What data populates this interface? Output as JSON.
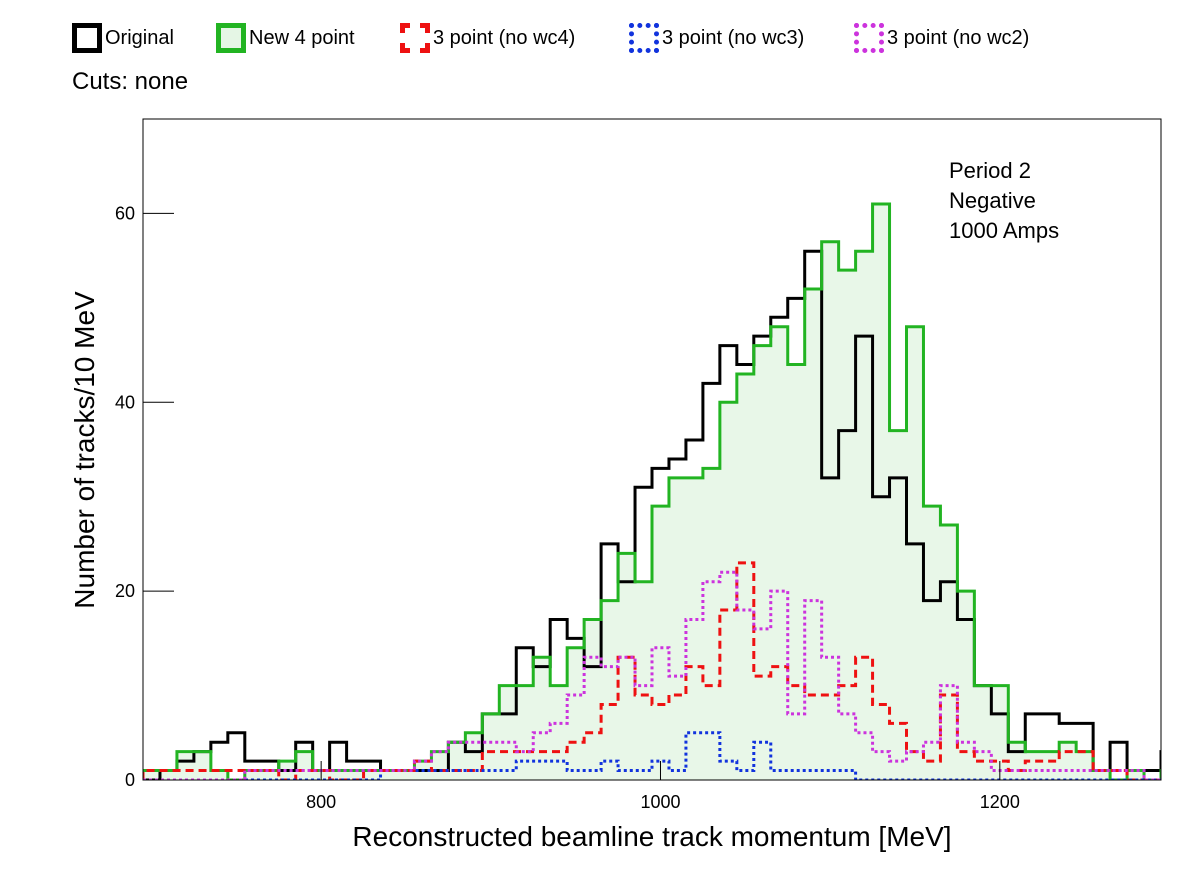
{
  "cuts_label": "Cuts: none",
  "annotations": [
    "Period 2",
    "Negative",
    "1000 Amps"
  ],
  "chart_data": {
    "type": "step-histogram",
    "title": "",
    "xlabel": "Reconstructed beamline track momentum [MeV]",
    "ylabel": "Number of tracks/10 MeV",
    "xlim": [
      695,
      1295
    ],
    "ylim": [
      0,
      70
    ],
    "xticks": [
      800,
      1000,
      1200
    ],
    "yticks": [
      0,
      20,
      40,
      60
    ],
    "legend_position": "top",
    "bin_width": 10,
    "x_start": 695,
    "series": [
      {
        "name": "Original",
        "color": "#000000",
        "fill": "none",
        "dash": "",
        "legend_fill": "none",
        "width": 3,
        "values": [
          0,
          1,
          2,
          3,
          4,
          5,
          2,
          2,
          1,
          4,
          1,
          4,
          2,
          2,
          1,
          1,
          1,
          1,
          4,
          3,
          7,
          7,
          14,
          12,
          17,
          15,
          12,
          25,
          21,
          31,
          33,
          34,
          36,
          42,
          46,
          44,
          47,
          49,
          51,
          56,
          32,
          37,
          47,
          30,
          32,
          25,
          19,
          21,
          17,
          10,
          7,
          3,
          7,
          7,
          6,
          6,
          1,
          4,
          1,
          1,
          3,
          2,
          1,
          1
        ]
      },
      {
        "name": "New 4 point",
        "color": "#22b422",
        "fill": "#22b422",
        "dash": "",
        "legend_fill": "#e5f6e5",
        "width": 3,
        "values": [
          1,
          1,
          3,
          3,
          1,
          0,
          1,
          1,
          2,
          3,
          1,
          1,
          1,
          1,
          1,
          1,
          2,
          3,
          4,
          5,
          7,
          10,
          10,
          13,
          10,
          14,
          17,
          19,
          24,
          21,
          29,
          32,
          32,
          33,
          40,
          43,
          46,
          48,
          44,
          52,
          57,
          54,
          56,
          61,
          37,
          48,
          29,
          27,
          20,
          10,
          10,
          4,
          3,
          3,
          4,
          3,
          1,
          0,
          1,
          0,
          1,
          1,
          0,
          0
        ]
      },
      {
        "name": "3 point (no wc4)",
        "color": "#ee1111",
        "fill": "none",
        "dash": "8,5",
        "legend_fill": "none",
        "width": 3,
        "values": [
          1,
          1,
          1,
          1,
          1,
          1,
          1,
          1,
          0,
          1,
          1,
          0,
          0,
          1,
          1,
          1,
          2,
          1,
          1,
          1,
          3,
          3,
          3,
          3,
          3,
          4,
          5,
          8,
          13,
          9,
          8,
          9,
          12,
          10,
          18,
          23,
          11,
          12,
          10,
          9,
          9,
          10,
          13,
          8,
          6,
          3,
          2,
          9,
          3,
          2,
          2,
          1,
          2,
          2,
          3,
          3,
          1,
          1,
          0,
          0,
          0,
          0,
          0,
          1
        ]
      },
      {
        "name": "3 point (no wc3)",
        "color": "#1133dd",
        "fill": "none",
        "dash": "3,3",
        "legend_fill": "none",
        "width": 3,
        "values": [
          0,
          0,
          0,
          0,
          0,
          0,
          0,
          0,
          0,
          0,
          0,
          0,
          0,
          0,
          1,
          1,
          1,
          1,
          1,
          1,
          1,
          1,
          2,
          2,
          2,
          1,
          1,
          2,
          1,
          1,
          2,
          1,
          5,
          5,
          2,
          1,
          4,
          1,
          1,
          1,
          1,
          1,
          0,
          0,
          0,
          0,
          0,
          0,
          0,
          0,
          0,
          0,
          0,
          0,
          0,
          0,
          0,
          0,
          0,
          0,
          0,
          0,
          0,
          0
        ]
      },
      {
        "name": "3 point (no wc2)",
        "color": "#cc33dd",
        "fill": "none",
        "dash": "3,3",
        "legend_fill": "none",
        "width": 3,
        "values": [
          0,
          0,
          0,
          0,
          0,
          0,
          1,
          1,
          1,
          1,
          1,
          1,
          1,
          1,
          1,
          1,
          2,
          3,
          4,
          4,
          4,
          4,
          3,
          5,
          6,
          9,
          13,
          12,
          13,
          10,
          14,
          11,
          17,
          21,
          22,
          18,
          16,
          20,
          7,
          19,
          13,
          7,
          5,
          3,
          2,
          3,
          4,
          10,
          4,
          3,
          1,
          1,
          1,
          1,
          1,
          1,
          1,
          1,
          1,
          0,
          0,
          0,
          0,
          2
        ]
      }
    ]
  }
}
